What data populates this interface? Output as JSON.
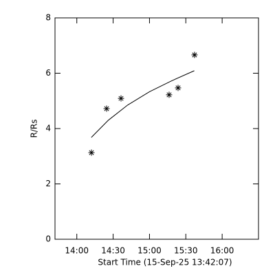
{
  "chart_data": {
    "type": "scatter",
    "xlabel": "Start Time (15-Sep-25 13:42:07)",
    "ylabel": "R/Rs",
    "xlim": [
      822,
      990
    ],
    "xticks": [
      {
        "value": 840,
        "label": "14:00"
      },
      {
        "value": 870,
        "label": "14:30"
      },
      {
        "value": 900,
        "label": "15:00"
      },
      {
        "value": 930,
        "label": "15:30"
      },
      {
        "value": 960,
        "label": "16:00"
      }
    ],
    "ylim": [
      0,
      8
    ],
    "yticks": [
      0,
      2,
      4,
      6,
      8
    ],
    "color": "#000000",
    "points": {
      "x": [
        852.1,
        864.6,
        876.5,
        916.2,
        923.6,
        937.2
      ],
      "values": [
        3.13,
        4.72,
        5.09,
        5.22,
        5.47,
        6.66
      ]
    },
    "fit": {
      "x": [
        852,
        866,
        882,
        900,
        918,
        937
      ],
      "values": [
        3.68,
        4.3,
        4.85,
        5.33,
        5.72,
        6.09
      ]
    }
  }
}
